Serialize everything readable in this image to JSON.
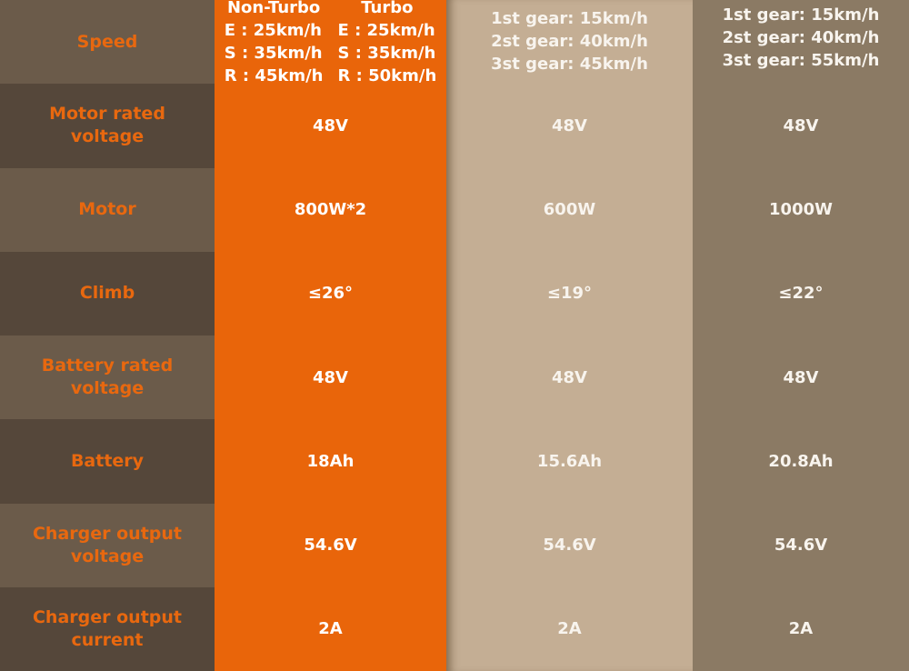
{
  "row_labels": [
    "Speed",
    "Motor rated voltage",
    "Motor",
    "Climb",
    "Battery rated voltage",
    "Battery",
    "Charger output voltage",
    "Charger output current"
  ],
  "colors": {
    "label_text": "#e8680f",
    "label_light": "#6b5b4a",
    "label_dark": "#55473a",
    "column1": "#e9650a",
    "column2": "#c4ae94",
    "column3": "#8b7a64"
  },
  "columns": [
    {
      "speed": {
        "non_turbo": {
          "header": "Non-Turbo",
          "lines": [
            "E : 25km/h",
            "S : 35km/h",
            "R : 45km/h"
          ]
        },
        "turbo": {
          "header": "Turbo",
          "lines": [
            "E : 25km/h",
            "S : 35km/h",
            "R : 50km/h"
          ]
        }
      },
      "values": [
        "48V",
        "800W*2",
        "≤26°",
        "48V",
        "18Ah",
        "54.6V",
        "2A"
      ]
    },
    {
      "speed_lines": [
        "1st gear: 15km/h",
        "2st gear: 40km/h",
        "3st gear: 45km/h"
      ],
      "values": [
        "48V",
        "600W",
        "≤19°",
        "48V",
        "15.6Ah",
        "54.6V",
        "2A"
      ]
    },
    {
      "speed_lines": [
        "1st gear: 15km/h",
        "2st gear: 40km/h",
        "3st gear: 55km/h"
      ],
      "values": [
        "48V",
        "1000W",
        "≤22°",
        "48V",
        "20.8Ah",
        "54.6V",
        "2A"
      ]
    }
  ]
}
